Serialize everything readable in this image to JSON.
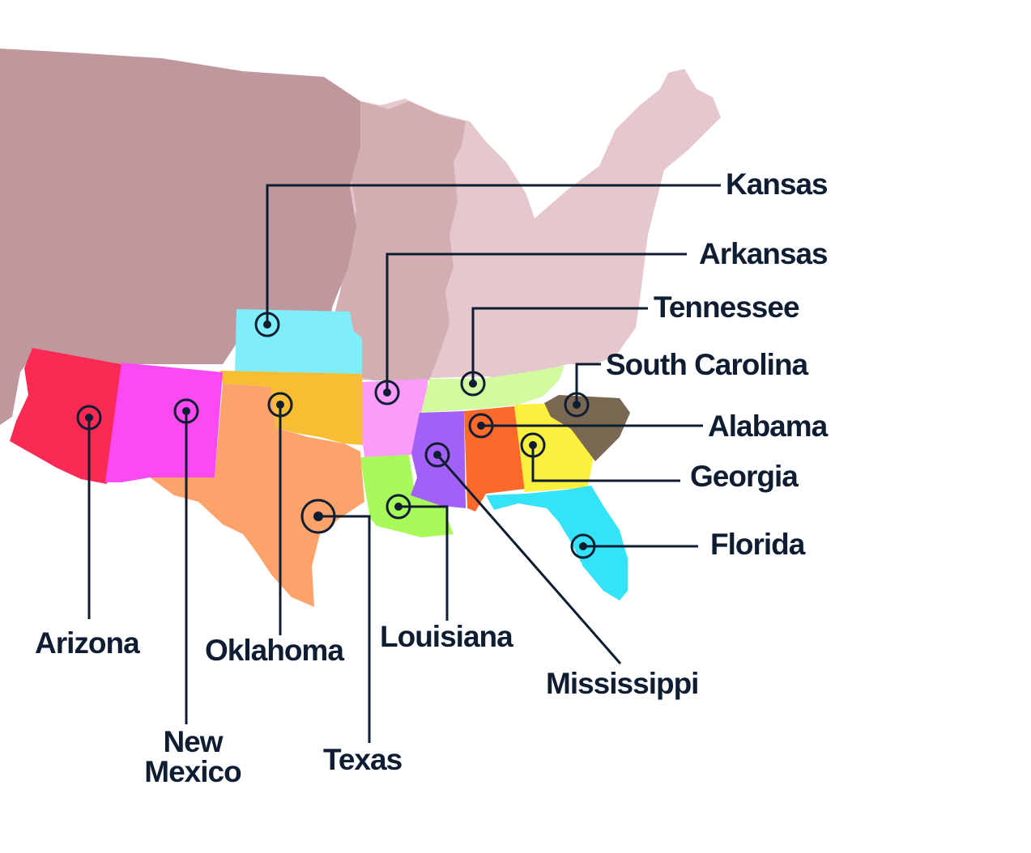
{
  "colors": {
    "ink": "#0f1d33",
    "region_west": "#bf989e",
    "region_midwest": "#d2aeb2",
    "region_east": "#e5c8cc",
    "Kansas": "#80eefa",
    "Arkansas": "#fb9cfb",
    "Tennessee": "#d2fba0",
    "South Carolina": "#7a6751",
    "Alabama": "#fb6a2a",
    "Georgia": "#fbef3f",
    "Florida": "#34e3f7",
    "Arizona": "#fb2a55",
    "New Mexico": "#fb4af1",
    "Oklahoma": "#f7bd33",
    "Texas": "#fba36b",
    "Louisiana": "#a8f95a",
    "Mississippi": "#a360f7"
  },
  "labels": {
    "kansas": "Kansas",
    "arkansas": "Arkansas",
    "tennessee": "Tennessee",
    "south_carolina": "South Carolina",
    "alabama": "Alabama",
    "georgia": "Georgia",
    "florida": "Florida",
    "arizona": "Arizona",
    "new_mexico_1": "New",
    "new_mexico_2": "Mexico",
    "oklahoma": "Oklahoma",
    "texas": "Texas",
    "louisiana": "Louisiana",
    "mississippi": "Mississippi"
  }
}
